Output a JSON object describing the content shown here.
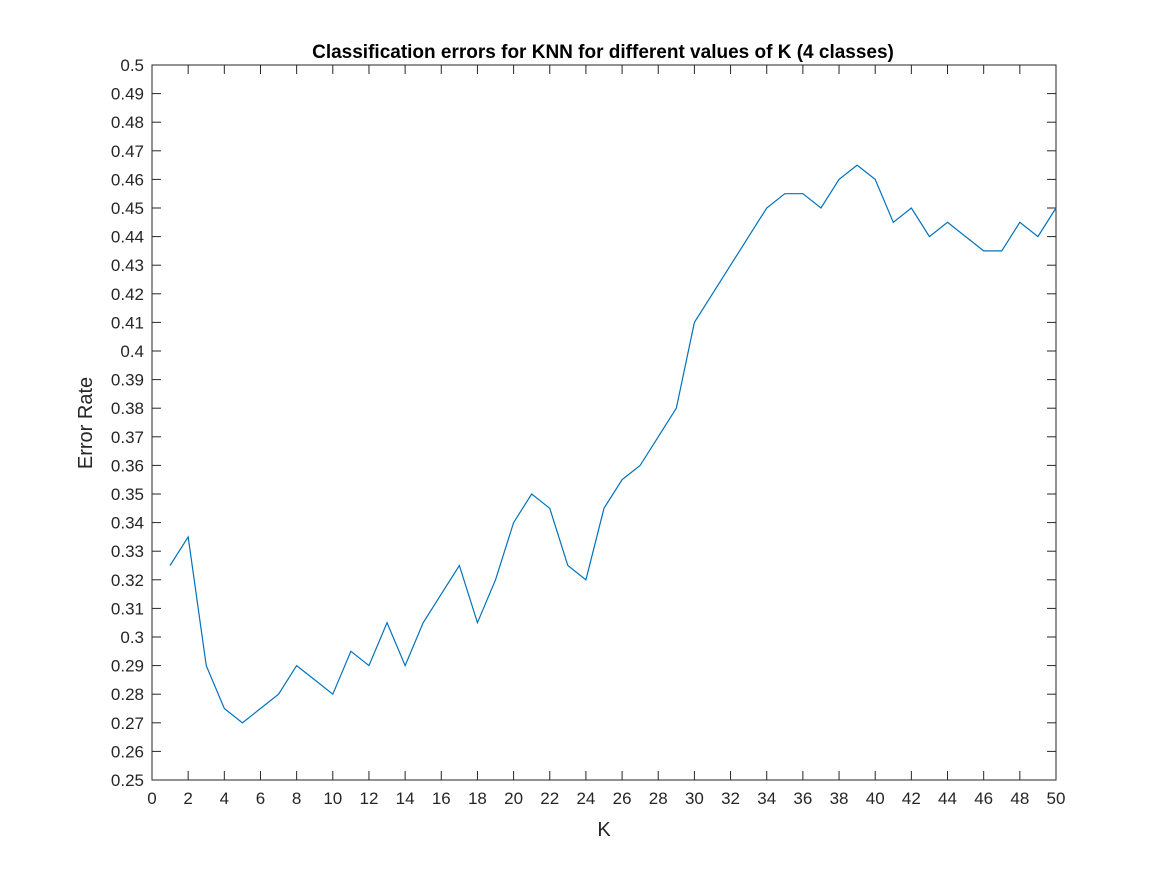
{
  "chart_data": {
    "type": "line",
    "title": "Classification errors for KNN for different values of K (4 classes)",
    "xlabel": "K",
    "ylabel": "Error Rate",
    "xlim": [
      0,
      50
    ],
    "ylim": [
      0.25,
      0.5
    ],
    "xticks": [
      "0",
      "2",
      "4",
      "6",
      "8",
      "10",
      "12",
      "14",
      "16",
      "18",
      "20",
      "22",
      "24",
      "26",
      "28",
      "30",
      "32",
      "34",
      "36",
      "38",
      "40",
      "42",
      "44",
      "46",
      "48",
      "50"
    ],
    "yticks": [
      "0.25",
      "0.26",
      "0.27",
      "0.28",
      "0.29",
      "0.3",
      "0.31",
      "0.32",
      "0.33",
      "0.34",
      "0.35",
      "0.36",
      "0.37",
      "0.38",
      "0.39",
      "0.4",
      "0.41",
      "0.42",
      "0.43",
      "0.44",
      "0.45",
      "0.46",
      "0.47",
      "0.48",
      "0.49",
      "0.5"
    ],
    "grid": false,
    "line_color": "#0072BD",
    "series": [
      {
        "x": [
          1,
          2,
          3,
          4,
          5,
          6,
          7,
          8,
          9,
          10,
          11,
          12,
          13,
          14,
          15,
          16,
          17,
          18,
          19,
          20,
          21,
          22,
          23,
          24,
          25,
          26,
          27,
          28,
          29,
          30,
          31,
          32,
          33,
          34,
          35,
          36,
          37,
          38,
          39,
          40,
          41,
          42,
          43,
          44,
          45,
          46,
          47,
          48,
          49,
          50
        ],
        "values": [
          0.325,
          0.335,
          0.29,
          0.275,
          0.27,
          0.275,
          0.28,
          0.29,
          0.285,
          0.28,
          0.295,
          0.29,
          0.305,
          0.29,
          0.305,
          0.315,
          0.325,
          0.305,
          0.32,
          0.34,
          0.35,
          0.345,
          0.325,
          0.32,
          0.345,
          0.355,
          0.36,
          0.37,
          0.38,
          0.41,
          0.42,
          0.43,
          0.44,
          0.45,
          0.455,
          0.455,
          0.45,
          0.46,
          0.465,
          0.46,
          0.445,
          0.45,
          0.44,
          0.445,
          0.44,
          0.435,
          0.435,
          0.445,
          0.44,
          0.45
        ]
      }
    ]
  }
}
